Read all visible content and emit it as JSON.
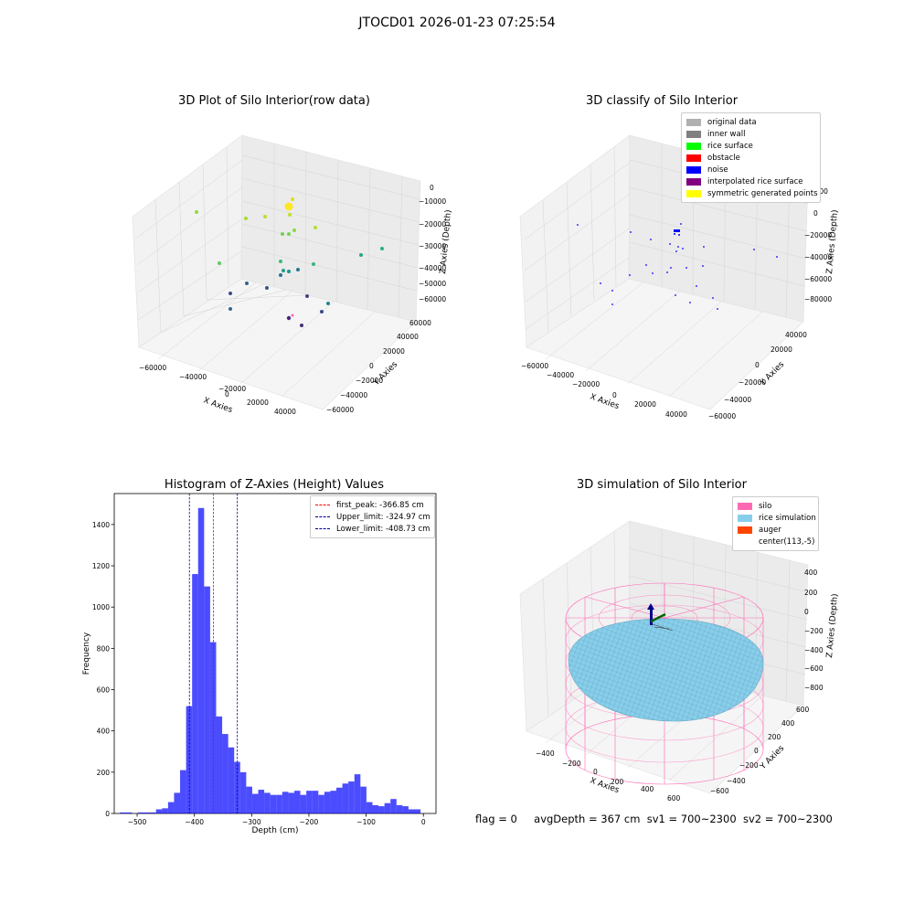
{
  "figure": {
    "suptitle": "JTOCD01 2026-01-23 07:25:54"
  },
  "status": {
    "flag": "flag = 0",
    "avg_depth": "avgDepth = 367 cm",
    "sv1": "sv1 = 700~2300",
    "sv2": "sv2 = 700~2300"
  },
  "chart_data": [
    {
      "id": "raw",
      "type": "scatter",
      "title": "3D Plot of Silo Interior(row data)",
      "xlabel": "X Axies",
      "ylabel": "Y Axies",
      "zlabel": "Z Axies (Depth)",
      "xticks": [
        "−60000",
        "−40000",
        "−20000",
        "0",
        "20000",
        "40000"
      ],
      "yticks": [
        "−60000",
        "−40000",
        "−20000",
        "0",
        "20000",
        "40000",
        "60000"
      ],
      "zticks": [
        "0",
        "−10000",
        "−20000",
        "−30000",
        "−40000",
        "−50000",
        "−60000"
      ],
      "colormap": [
        "#440154",
        "#3b528b",
        "#21908d",
        "#5dc863",
        "#fde725"
      ],
      "points_note": "screen-projected scatter; values unreadable"
    },
    {
      "id": "classify",
      "type": "scatter",
      "title": "3D classify of Silo Interior",
      "xlabel": "X Axies",
      "ylabel": "Y Axies",
      "zlabel": "Z Axies (Depth)",
      "xticks": [
        "−60000",
        "−40000",
        "−20000",
        "0",
        "20000",
        "40000"
      ],
      "yticks": [
        "−60000",
        "−40000",
        "−20000",
        "0",
        "20000",
        "40000"
      ],
      "zticks": [
        "20000",
        "0",
        "−20000",
        "−40000",
        "−60000",
        "−80000"
      ],
      "legend": [
        {
          "label": "original data",
          "color": "#b0b0b0"
        },
        {
          "label": "inner wall",
          "color": "#808080"
        },
        {
          "label": "rice surface",
          "color": "#00ff00"
        },
        {
          "label": "obstacle",
          "color": "#ff0000"
        },
        {
          "label": "noise",
          "color": "#0000ff"
        },
        {
          "label": "interpolated rice surface",
          "color": "#800080"
        },
        {
          "label": "symmetric generated points",
          "color": "#ffff00"
        }
      ]
    },
    {
      "id": "hist",
      "type": "bar",
      "title": "Histogram of Z-Axies (Height) Values",
      "xlabel": "Depth (cm)",
      "ylabel": "Frequency",
      "xlim": [
        -540,
        22
      ],
      "ylim": [
        0,
        1550
      ],
      "xticks": [
        -500,
        -400,
        -300,
        -200,
        -100,
        0
      ],
      "yticks": [
        0,
        200,
        400,
        600,
        800,
        1000,
        1200,
        1400
      ],
      "bin_start": -530,
      "bin_width": 10.5,
      "values": [
        5,
        5,
        0,
        5,
        5,
        5,
        20,
        25,
        55,
        100,
        210,
        520,
        1160,
        1480,
        1100,
        830,
        470,
        385,
        320,
        250,
        200,
        130,
        95,
        115,
        100,
        90,
        90,
        105,
        100,
        110,
        90,
        110,
        110,
        90,
        105,
        110,
        125,
        145,
        155,
        190,
        130,
        55,
        40,
        35,
        50,
        70,
        40,
        35,
        20,
        20
      ],
      "bar_color": "#0000ff",
      "vlines": [
        {
          "label": "first_peak: -366.85 cm",
          "x": -366.85,
          "color": "#ff0000"
        },
        {
          "label": "Upper_limit: -324.97 cm",
          "x": -324.97,
          "color": "#00008b"
        },
        {
          "label": "Lower_limit: -408.73 cm",
          "x": -408.73,
          "color": "#00008b"
        }
      ]
    },
    {
      "id": "sim",
      "type": "3d-surface",
      "title": "3D simulation of Silo Interior",
      "xlabel": "X Axies",
      "ylabel": "Y Axies",
      "zlabel": "Z Axies (Depth)",
      "xticks": [
        "−400",
        "−200",
        "0",
        "200",
        "400",
        "600"
      ],
      "yticks": [
        "−600",
        "−400",
        "−200",
        "0",
        "200",
        "400",
        "600"
      ],
      "zticks": [
        "400",
        "200",
        "0",
        "−200",
        "−400",
        "−600",
        "−800"
      ],
      "legend": [
        {
          "label": "silo",
          "color": "#ff69b4"
        },
        {
          "label": "rice simulation",
          "color": "#87ceeb"
        },
        {
          "label": "auger",
          "color": "#ff4500"
        },
        {
          "label": "center(113,-5)",
          "color": ""
        }
      ]
    }
  ]
}
